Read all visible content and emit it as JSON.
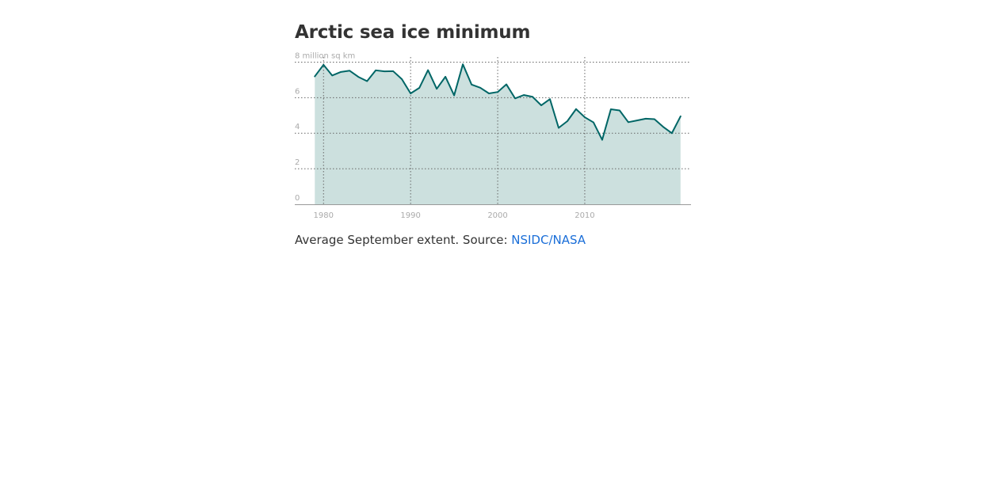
{
  "header": {
    "title": "Arctic sea ice minimum"
  },
  "caption": {
    "text": "Average September extent. Source: ",
    "link_label": "NSIDC/NASA"
  },
  "colors": {
    "line": "#006666",
    "area": "#cce0de",
    "grid": "#666666",
    "axis_text": "#aaaaaa",
    "link": "#1a6ed8"
  },
  "chart_data": {
    "type": "area",
    "title": "Arctic sea ice minimum",
    "ylabel": "million sq km",
    "y_ticks": [
      0,
      2,
      4,
      6,
      8
    ],
    "y_tick_labels": [
      "0",
      "2",
      "4",
      "6",
      "8 million sq km"
    ],
    "x_ticks": [
      1980,
      1990,
      2000,
      2010
    ],
    "x_tick_labels": [
      "1980",
      "1990",
      "2000",
      "2010"
    ],
    "xlim": [
      1976.7,
      2022.2
    ],
    "ylim": [
      0,
      8.2
    ],
    "grid": true,
    "x": [
      1979,
      1980,
      1981,
      1982,
      1983,
      1984,
      1985,
      1986,
      1987,
      1988,
      1989,
      1990,
      1991,
      1992,
      1993,
      1994,
      1995,
      1996,
      1997,
      1998,
      1999,
      2000,
      2001,
      2002,
      2003,
      2004,
      2005,
      2006,
      2007,
      2008,
      2009,
      2010,
      2011,
      2012,
      2013,
      2014,
      2015,
      2016,
      2017,
      2018,
      2019,
      2020,
      2021
    ],
    "y": [
      7.2,
      7.85,
      7.25,
      7.45,
      7.52,
      7.17,
      6.93,
      7.54,
      7.48,
      7.49,
      7.04,
      6.24,
      6.55,
      7.55,
      6.5,
      7.18,
      6.13,
      7.88,
      6.74,
      6.56,
      6.24,
      6.32,
      6.75,
      5.96,
      6.15,
      6.05,
      5.57,
      5.92,
      4.3,
      4.68,
      5.36,
      4.9,
      4.61,
      3.63,
      5.35,
      5.28,
      4.62,
      4.72,
      4.82,
      4.79,
      4.36,
      4.0,
      4.95
    ]
  }
}
